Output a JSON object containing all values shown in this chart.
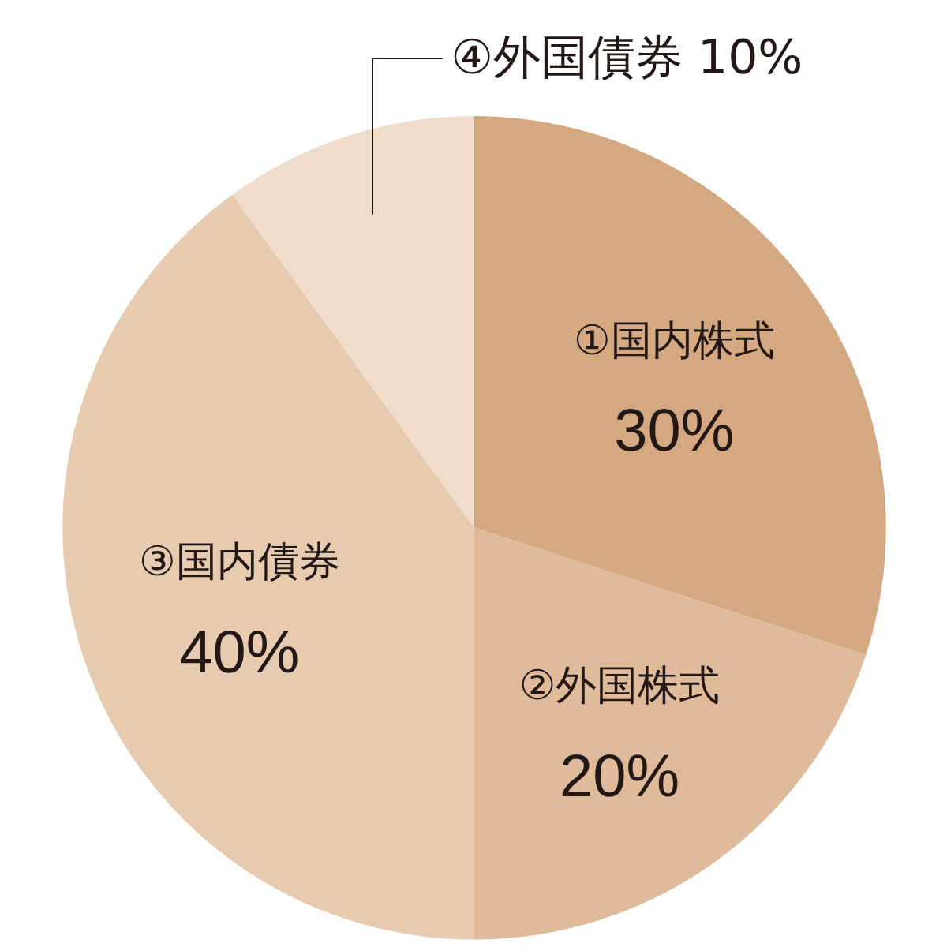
{
  "chart_data": {
    "type": "pie",
    "categories": [
      "①国内株式",
      "②外国株式",
      "③国内債券",
      "④外国債券"
    ],
    "values": [
      30,
      20,
      40,
      10
    ],
    "value_labels": [
      "30%",
      "20%",
      "40%",
      "10%"
    ],
    "colors": [
      "#d4a982",
      "#dfbb9c",
      "#e6cbb1",
      "#efdccb"
    ]
  }
}
